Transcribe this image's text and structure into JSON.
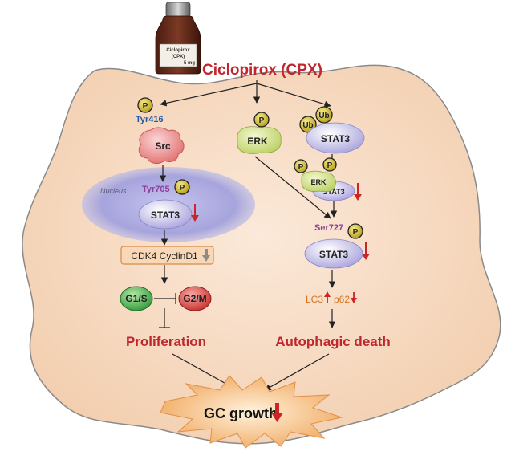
{
  "drug": {
    "title": "Ciclopirox (CPX)",
    "bottle_label": [
      "Ciclopirox",
      "(CPX)",
      "5 mg"
    ]
  },
  "left_pathway": {
    "phospho_site_src": "Tyr416",
    "src_label": "Src",
    "nucleus_label": "Nucleus",
    "phospho_site_stat3": "Tyr705",
    "stat3_label": "STAT3",
    "cdk_box_label": "CDK4 CyclinD1",
    "g1s_label": "G1/S",
    "g2m_label": "G2/M",
    "outcome": "Proliferation"
  },
  "middle_pathway": {
    "erk_label": "ERK"
  },
  "right_pathway": {
    "ub_label": "Ub",
    "stat3_label": "STAT3",
    "complex_erk_label": "ERK",
    "complex_stat3_label": "STAT3",
    "phospho_site_stat3": "Ser727",
    "stat3_lower_label": "STAT3",
    "lc3_label": "LC3",
    "p62_label": "p62",
    "outcome": "Autophagic death"
  },
  "phospho_marker": "P",
  "final_outcome": "GC growth",
  "colors": {
    "title_red": "#c0262d",
    "cell_fill": "#f8dcc4",
    "cell_stroke": "#8a8a8a",
    "nucleus": "#9c9bd6",
    "src": "#ea8a8a",
    "erk": "#cfe08a",
    "stat3": "#b9b4e0",
    "phospho": "#c7b422",
    "g1s": "#3fae4a",
    "g2m": "#d83a36",
    "marker_orange": "#d5731f",
    "site_blue": "#1f59a8",
    "site_purple": "#8d3f9c",
    "arrow_down_red": "#cc2525",
    "arrow_down_gray": "#8c8c8c",
    "burst": "#f3b470"
  },
  "icons": [
    "bottle-icon",
    "phospho-p-icon",
    "ubiquitin-icon",
    "down-arrow-icon",
    "up-arrow-icon",
    "burst-icon",
    "inhibit-icon"
  ]
}
